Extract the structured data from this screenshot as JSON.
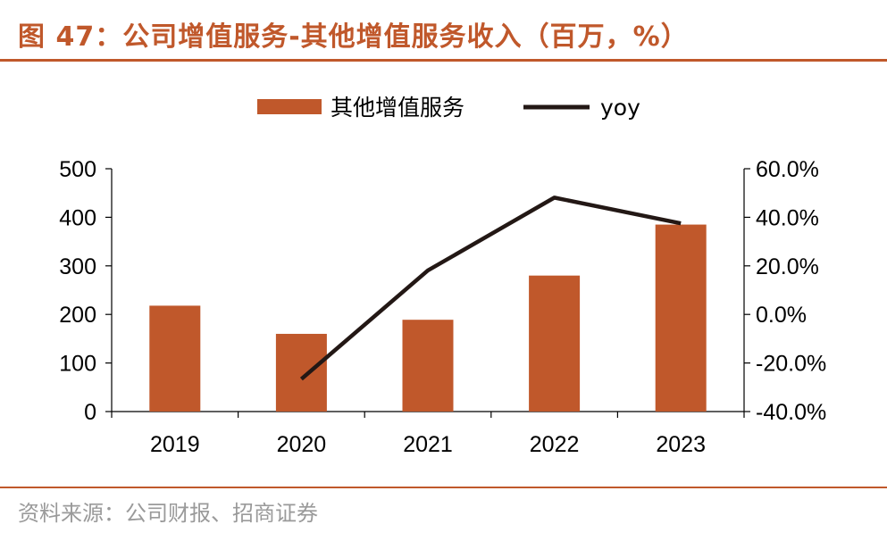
{
  "header": {
    "title": "图 47：公司增值服务-其他增值服务收入（百万，%）"
  },
  "footer": {
    "source": "资料来源：公司财报、招商证券"
  },
  "colors": {
    "accent": "#c0582b",
    "bar": "#c0582b",
    "line": "#231815",
    "axis": "#000000"
  },
  "chart_data": {
    "type": "bar",
    "title": "公司增值服务-其他增值服务收入（百万，%）",
    "categories": [
      "2019",
      "2020",
      "2021",
      "2022",
      "2023"
    ],
    "series": [
      {
        "name": "其他增值服务",
        "type": "bar",
        "axis": "left",
        "values": [
          218,
          160,
          189,
          280,
          385
        ]
      },
      {
        "name": "yoy",
        "type": "line",
        "axis": "right",
        "values": [
          null,
          -26.6,
          18.1,
          48.1,
          37.5
        ]
      }
    ],
    "left_axis": {
      "ylim": [
        0,
        500
      ],
      "ticks": [
        "0",
        "100",
        "200",
        "300",
        "400",
        "500"
      ]
    },
    "right_axis": {
      "ylim": [
        -40,
        60
      ],
      "ticks": [
        "-40.0%",
        "-20.0%",
        "0.0%",
        "20.0%",
        "40.0%",
        "60.0%"
      ]
    },
    "legend": {
      "position": "top",
      "labels": [
        "其他增值服务",
        "yoy"
      ]
    },
    "grid": false
  }
}
